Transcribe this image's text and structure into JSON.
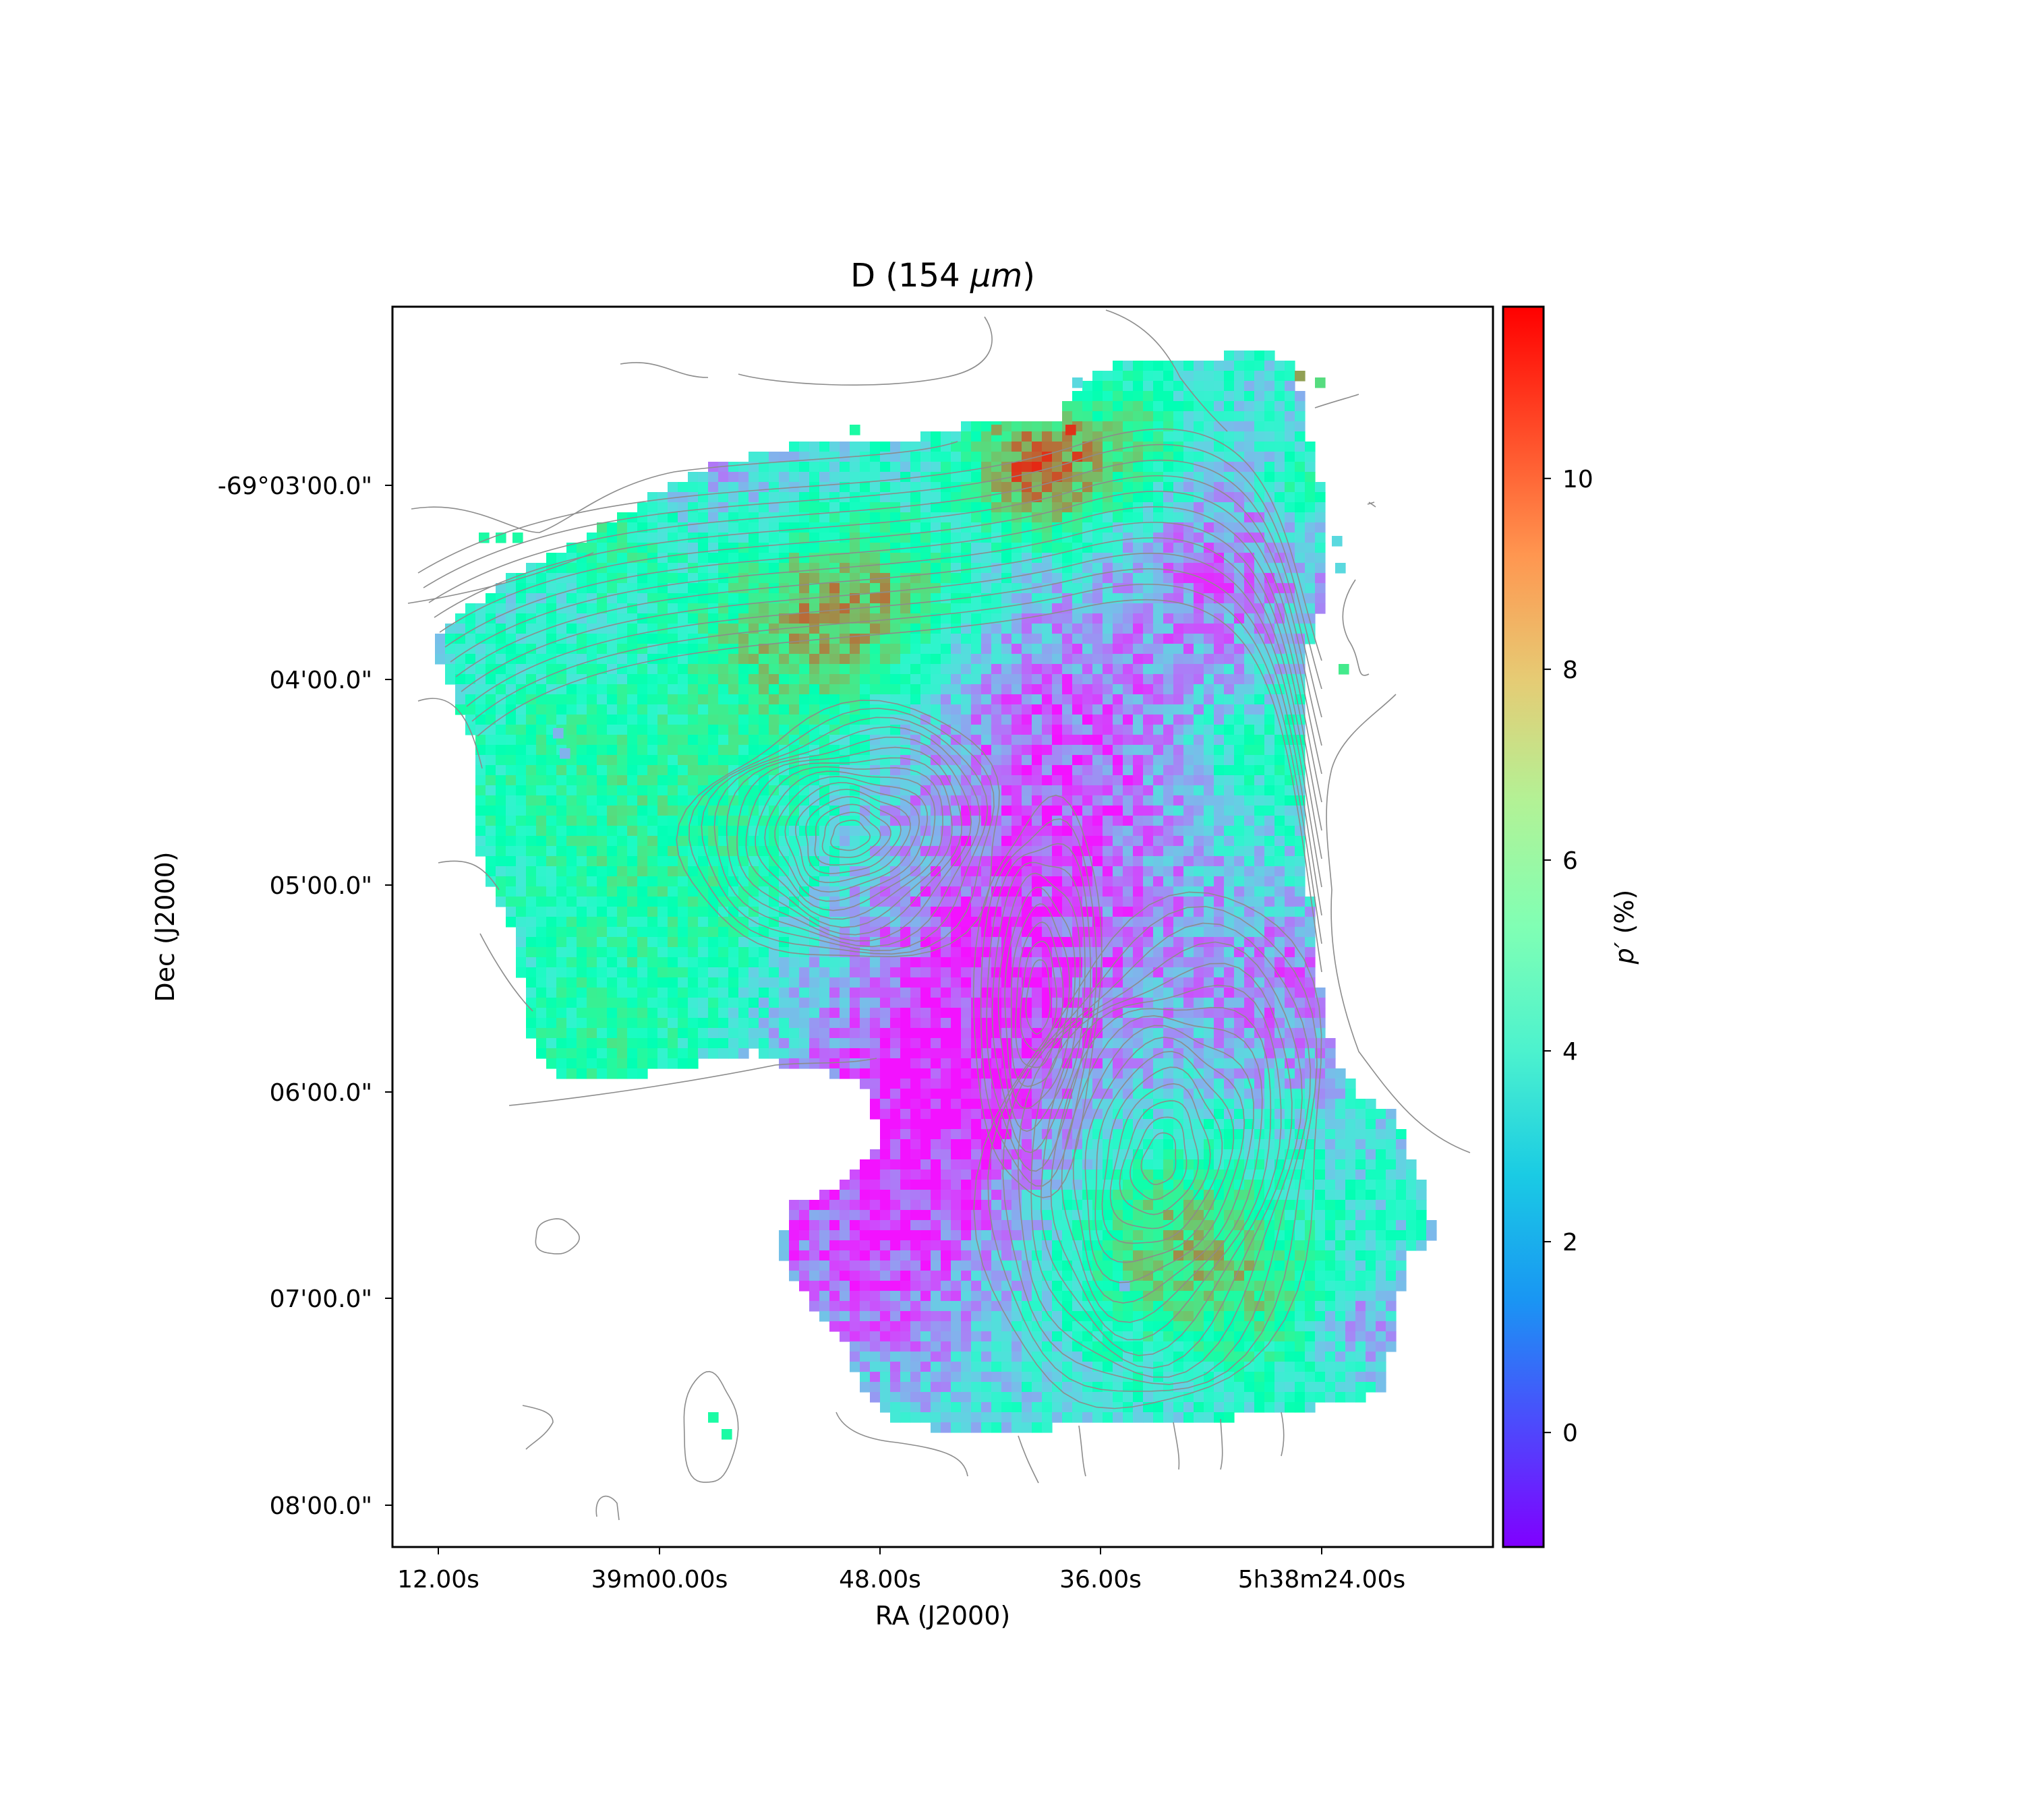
{
  "chart_data": {
    "type": "heatmap",
    "title": "D (154 μm)",
    "title_parts": {
      "prefix": "D (154 ",
      "unit": "μm",
      "suffix": ")"
    },
    "xlabel": "RA (J2000)",
    "ylabel": "Dec (J2000)",
    "x_ticks": [
      "12.00s",
      "39m00.00s",
      "48.00s",
      "36.00s",
      "5h38m24.00s"
    ],
    "y_ticks": [
      "-69°03'00.0\"",
      "04'00.0\"",
      "05'00.0\"",
      "06'00.0\"",
      "07'00.0\"",
      "08'00.0\""
    ],
    "colorbar": {
      "label": "p′ (%)",
      "label_symbol": "p′",
      "label_unit": "(%)",
      "range": [
        -1.2,
        11.8
      ],
      "ticks": [
        0,
        2,
        4,
        6,
        8,
        10
      ],
      "colormap": "rainbow"
    },
    "value_range_estimate": [
      -1,
      11
    ],
    "notes_contours": "grey intensity contours overlaid",
    "regions_estimate": [
      {
        "name": "northern ridge maximum",
        "value": 11
      },
      {
        "name": "north-west filament",
        "value": 8.5
      },
      {
        "name": "central depolarized lane",
        "value": 0.5
      },
      {
        "name": "southern clump",
        "value": 8.5
      },
      {
        "name": "western lobe",
        "value": 5.5
      }
    ]
  },
  "colors": {
    "frame": "#000000",
    "contour": "#8c8c8c",
    "background": "#ffffff"
  }
}
